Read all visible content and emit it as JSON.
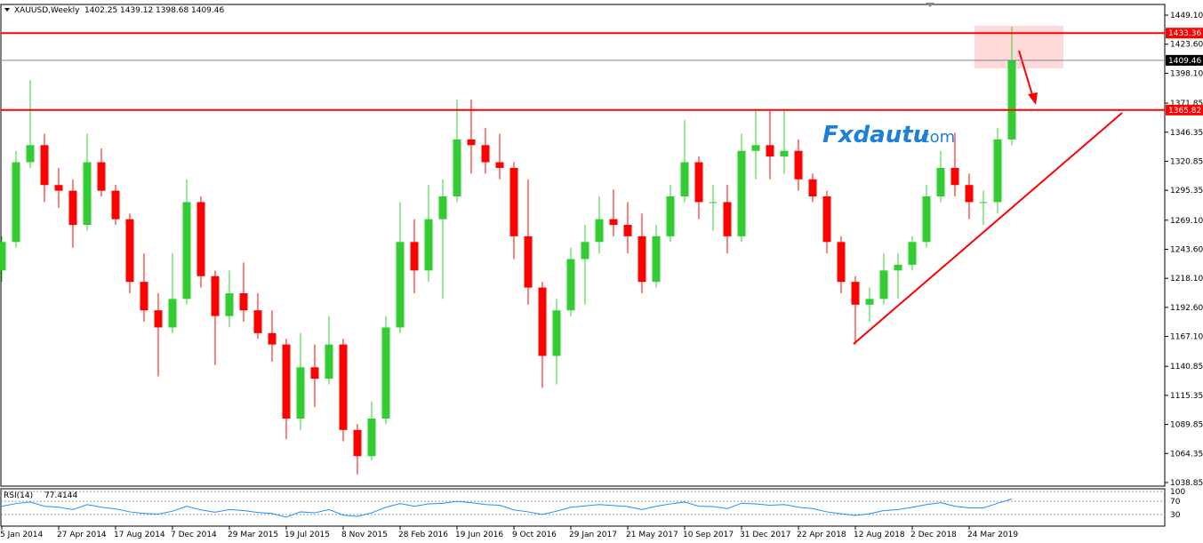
{
  "chart_data": {
    "type": "candlestick",
    "title": {
      "symbol": "XAUUSD,Weekly",
      "ohlc": [
        1402.25,
        1439.12,
        1398.68,
        1409.46
      ]
    },
    "watermark": {
      "brand": "Fxdautu",
      "suffix": ".com"
    },
    "categories": [
      "5 Jan 2014",
      null,
      null,
      null,
      "27 Apr 2014",
      null,
      null,
      null,
      "17 Aug 2014",
      null,
      null,
      null,
      "7 Dec 2014",
      null,
      null,
      null,
      "29 Mar 2015",
      null,
      null,
      null,
      "19 Jul 2015",
      null,
      null,
      null,
      "8 Nov 2015",
      null,
      null,
      null,
      "28 Feb 2016",
      null,
      null,
      null,
      "19 Jun 2016",
      null,
      null,
      null,
      "9 Oct 2016",
      null,
      null,
      null,
      "29 Jan 2017",
      null,
      null,
      null,
      "21 May 2017",
      null,
      null,
      null,
      "10 Sep 2017",
      null,
      null,
      null,
      "31 Dec 2017",
      null,
      null,
      null,
      "22 Apr 2018",
      null,
      null,
      null,
      "12 Aug 2018",
      null,
      null,
      null,
      "2 Dec 2018",
      null,
      null,
      null,
      "24 Mar 2019",
      null,
      null,
      null
    ],
    "open": [
      1225,
      1250,
      1320,
      1335,
      1300,
      1295,
      1265,
      1320,
      1295,
      1270,
      1215,
      1190,
      1175,
      1200,
      1285,
      1220,
      1185,
      1205,
      1190,
      1170,
      1160,
      1095,
      1140,
      1130,
      1160,
      1085,
      1062,
      1095,
      1175,
      1250,
      1225,
      1270,
      1290,
      1340,
      1335,
      1320,
      1315,
      1255,
      1210,
      1150,
      1190,
      1235,
      1250,
      1270,
      1265,
      1255,
      1215,
      1255,
      1290,
      1320,
      1285,
      1285,
      1255,
      1330,
      1335,
      1325,
      1330,
      1305,
      1290,
      1250,
      1215,
      1195,
      1200,
      1225,
      1230,
      1250,
      1290,
      1315,
      1300,
      1285,
      1285,
      1340
    ],
    "high": [
      1255,
      1330,
      1392,
      1345,
      1315,
      1305,
      1345,
      1332,
      1300,
      1275,
      1240,
      1205,
      1240,
      1305,
      1290,
      1225,
      1225,
      1232,
      1205,
      1190,
      1165,
      1170,
      1160,
      1185,
      1165,
      1090,
      1110,
      1185,
      1285,
      1270,
      1300,
      1305,
      1375,
      1375,
      1350,
      1345,
      1320,
      1305,
      1215,
      1200,
      1245,
      1265,
      1290,
      1296,
      1285,
      1275,
      1265,
      1300,
      1357,
      1325,
      1300,
      1300,
      1345,
      1365,
      1365,
      1365,
      1340,
      1310,
      1295,
      1255,
      1220,
      1210,
      1240,
      1240,
      1255,
      1300,
      1330,
      1346,
      1310,
      1295,
      1350,
      1439
    ],
    "low": [
      1215,
      1245,
      1315,
      1285,
      1280,
      1245,
      1260,
      1290,
      1265,
      1205,
      1180,
      1132,
      1170,
      1195,
      1210,
      1142,
      1175,
      1180,
      1165,
      1145,
      1077,
      1085,
      1105,
      1125,
      1075,
      1046,
      1058,
      1090,
      1170,
      1205,
      1215,
      1200,
      1285,
      1310,
      1310,
      1305,
      1235,
      1195,
      1122,
      1125,
      1185,
      1195,
      1240,
      1255,
      1240,
      1205,
      1210,
      1250,
      1285,
      1270,
      1260,
      1240,
      1250,
      1305,
      1305,
      1310,
      1295,
      1285,
      1240,
      1205,
      1160,
      1180,
      1195,
      1200,
      1225,
      1245,
      1285,
      1290,
      1270,
      1265,
      1275,
      1335
    ],
    "close": [
      1250,
      1320,
      1335,
      1300,
      1295,
      1265,
      1320,
      1295,
      1270,
      1215,
      1190,
      1175,
      1200,
      1285,
      1220,
      1185,
      1205,
      1190,
      1170,
      1160,
      1095,
      1140,
      1130,
      1160,
      1085,
      1062,
      1095,
      1175,
      1250,
      1225,
      1270,
      1290,
      1340,
      1335,
      1320,
      1315,
      1255,
      1210,
      1150,
      1190,
      1235,
      1250,
      1270,
      1265,
      1255,
      1215,
      1255,
      1290,
      1320,
      1285,
      1285,
      1255,
      1330,
      1335,
      1325,
      1330,
      1305,
      1290,
      1250,
      1215,
      1195,
      1200,
      1225,
      1230,
      1250,
      1290,
      1315,
      1300,
      1285,
      1285,
      1340,
      1409.46
    ],
    "up_color": "#32cd32",
    "down_color": "#ff0000",
    "ylim": [
      1035.7,
      1458.5
    ],
    "yticks": [
      {
        "value": 1449.1,
        "label": "1449.10"
      },
      {
        "value": 1423.6,
        "label": "1423.60"
      },
      {
        "value": 1398.1,
        "label": "1398.10"
      },
      1371.85,
      1346.35,
      1320.85,
      1295.35,
      {
        "value": 1269.1,
        "label": "1269.10"
      },
      {
        "value": 1243.6,
        "label": "1243.60"
      },
      {
        "value": 1218.1,
        "label": "1218.10"
      },
      {
        "value": 1192.6,
        "label": "1192.60"
      },
      {
        "value": 1167.1,
        "label": "1167.10"
      },
      1140.85,
      1115.35,
      1089.85,
      1064.35,
      1038.85
    ],
    "levels": [
      {
        "value": 1433.36,
        "color": "#ff0000"
      },
      {
        "value": 1409.46,
        "color": "#7f8c8d"
      },
      {
        "value": 1365.82,
        "color": "#ff0000"
      }
    ],
    "rsi": {
      "name": "RSI(14)",
      "last": 77.4144,
      "color": "#1e90ff",
      "values": [
        55,
        63,
        68,
        55,
        52,
        45,
        60,
        52,
        47,
        38,
        33,
        31,
        40,
        55,
        44,
        37,
        45,
        42,
        36,
        33,
        22,
        38,
        35,
        45,
        28,
        24,
        35,
        52,
        63,
        55,
        62,
        64,
        70,
        66,
        60,
        58,
        44,
        38,
        30,
        40,
        52,
        56,
        60,
        57,
        54,
        45,
        55,
        62,
        68,
        55,
        54,
        48,
        64,
        62,
        58,
        60,
        52,
        48,
        38,
        32,
        27,
        32,
        42,
        45,
        52,
        60,
        66,
        55,
        50,
        50,
        64,
        77.4144
      ],
      "ylim": [
        0,
        100
      ],
      "yticks": [
        100,
        70,
        30
      ]
    }
  }
}
